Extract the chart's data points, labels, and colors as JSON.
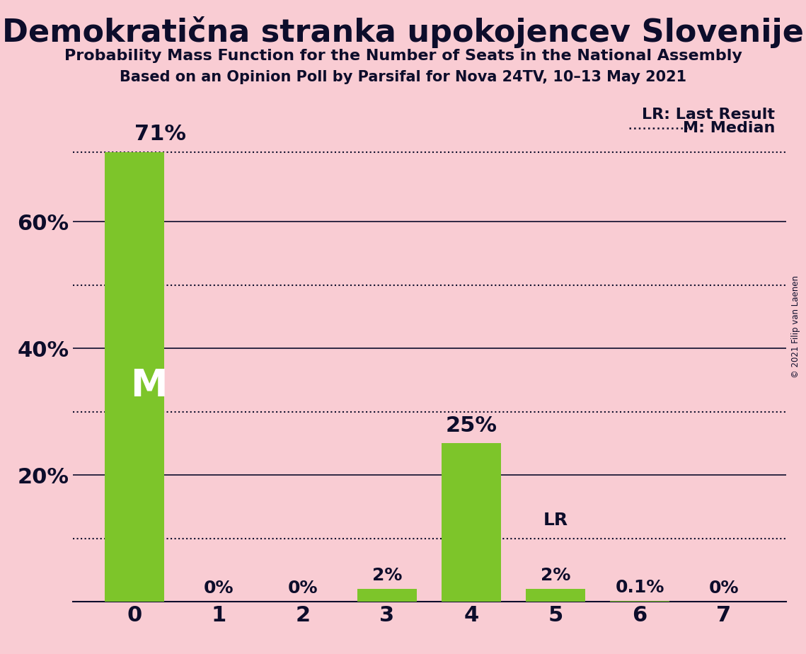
{
  "title": "Demokratična stranka upokojencev Slovenije",
  "subtitle1": "Probability Mass Function for the Number of Seats in the National Assembly",
  "subtitle2": "Based on an Opinion Poll by Parsifal for Nova 24TV, 10–13 May 2021",
  "copyright": "© 2021 Filip van Laenen",
  "categories": [
    0,
    1,
    2,
    3,
    4,
    5,
    6,
    7
  ],
  "values": [
    0.71,
    0.0,
    0.0,
    0.02,
    0.25,
    0.02,
    0.001,
    0.0
  ],
  "value_labels": [
    "71%",
    "0%",
    "0%",
    "2%",
    "25%",
    "2%",
    "0.1%",
    "0%"
  ],
  "bar_color": "#7dc52a",
  "background_color": "#f9ccd3",
  "text_color": "#0d0d2b",
  "median_seat": 0,
  "median_value": 0.71,
  "lr_seat": 5,
  "lr_value": 0.1,
  "ylim": [
    0,
    0.8
  ],
  "yticks": [
    0.2,
    0.4,
    0.6
  ],
  "ytick_labels": [
    "20%",
    "40%",
    "60%"
  ],
  "solid_grid_levels": [
    0.2,
    0.4,
    0.6
  ],
  "dotted_line_levels": [
    0.1,
    0.3,
    0.5,
    0.71,
    0.1
  ],
  "dotted_line_color": "#0d0d2b",
  "legend_lr_label": "LR: Last Result",
  "legend_m_label": "M: Median",
  "median_label": "M",
  "lr_label": "LR",
  "figsize": [
    11.39,
    9.24
  ],
  "dpi": 100
}
